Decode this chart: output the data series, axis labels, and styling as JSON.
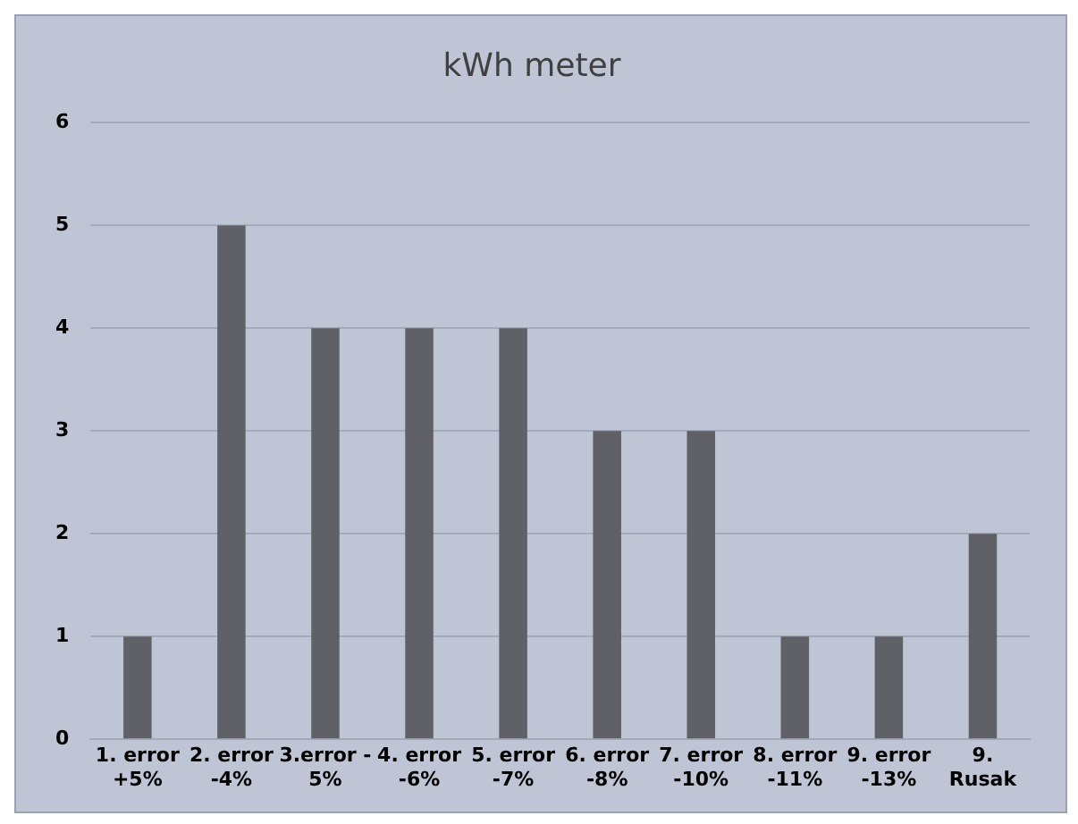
{
  "chart_data": {
    "type": "bar",
    "title": "kWh meter",
    "categories": [
      "1. error +5%",
      "2. error -4%",
      "3.error - 5%",
      "4. error -6%",
      "5. error -7%",
      "6. error -8%",
      "7. error -10%",
      "8. error -11%",
      "9. error -13%",
      "9. Rusak"
    ],
    "values": [
      1,
      5,
      4,
      4,
      4,
      3,
      3,
      1,
      1,
      2
    ],
    "color": "#5f6166",
    "ylim": [
      0,
      6
    ],
    "yticks": [
      0,
      1,
      2,
      3,
      4,
      5,
      6
    ],
    "grid": "y",
    "legend": false
  }
}
